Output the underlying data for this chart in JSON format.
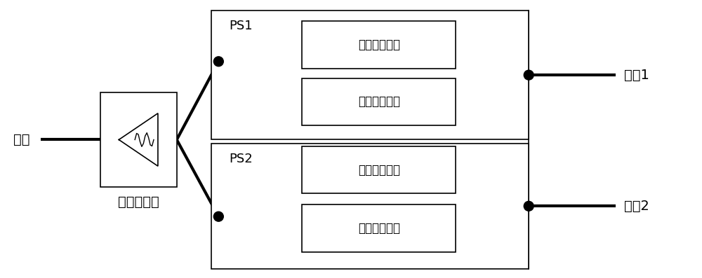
{
  "bg_color": "#ffffff",
  "line_color": "#000000",
  "thick_lw": 3.0,
  "thin_lw": 1.2,
  "input_label": "输入",
  "output1_label": "输出1",
  "output2_label": "输出2",
  "power_divider_label": "功率分配器",
  "ps1_label": "PS1",
  "ps2_label": "PS2",
  "ref_branch_label": "参考分支电路",
  "phase_branch_label": "相移分支电路",
  "font_size_label": 14,
  "font_size_ps": 13,
  "font_size_box": 12
}
